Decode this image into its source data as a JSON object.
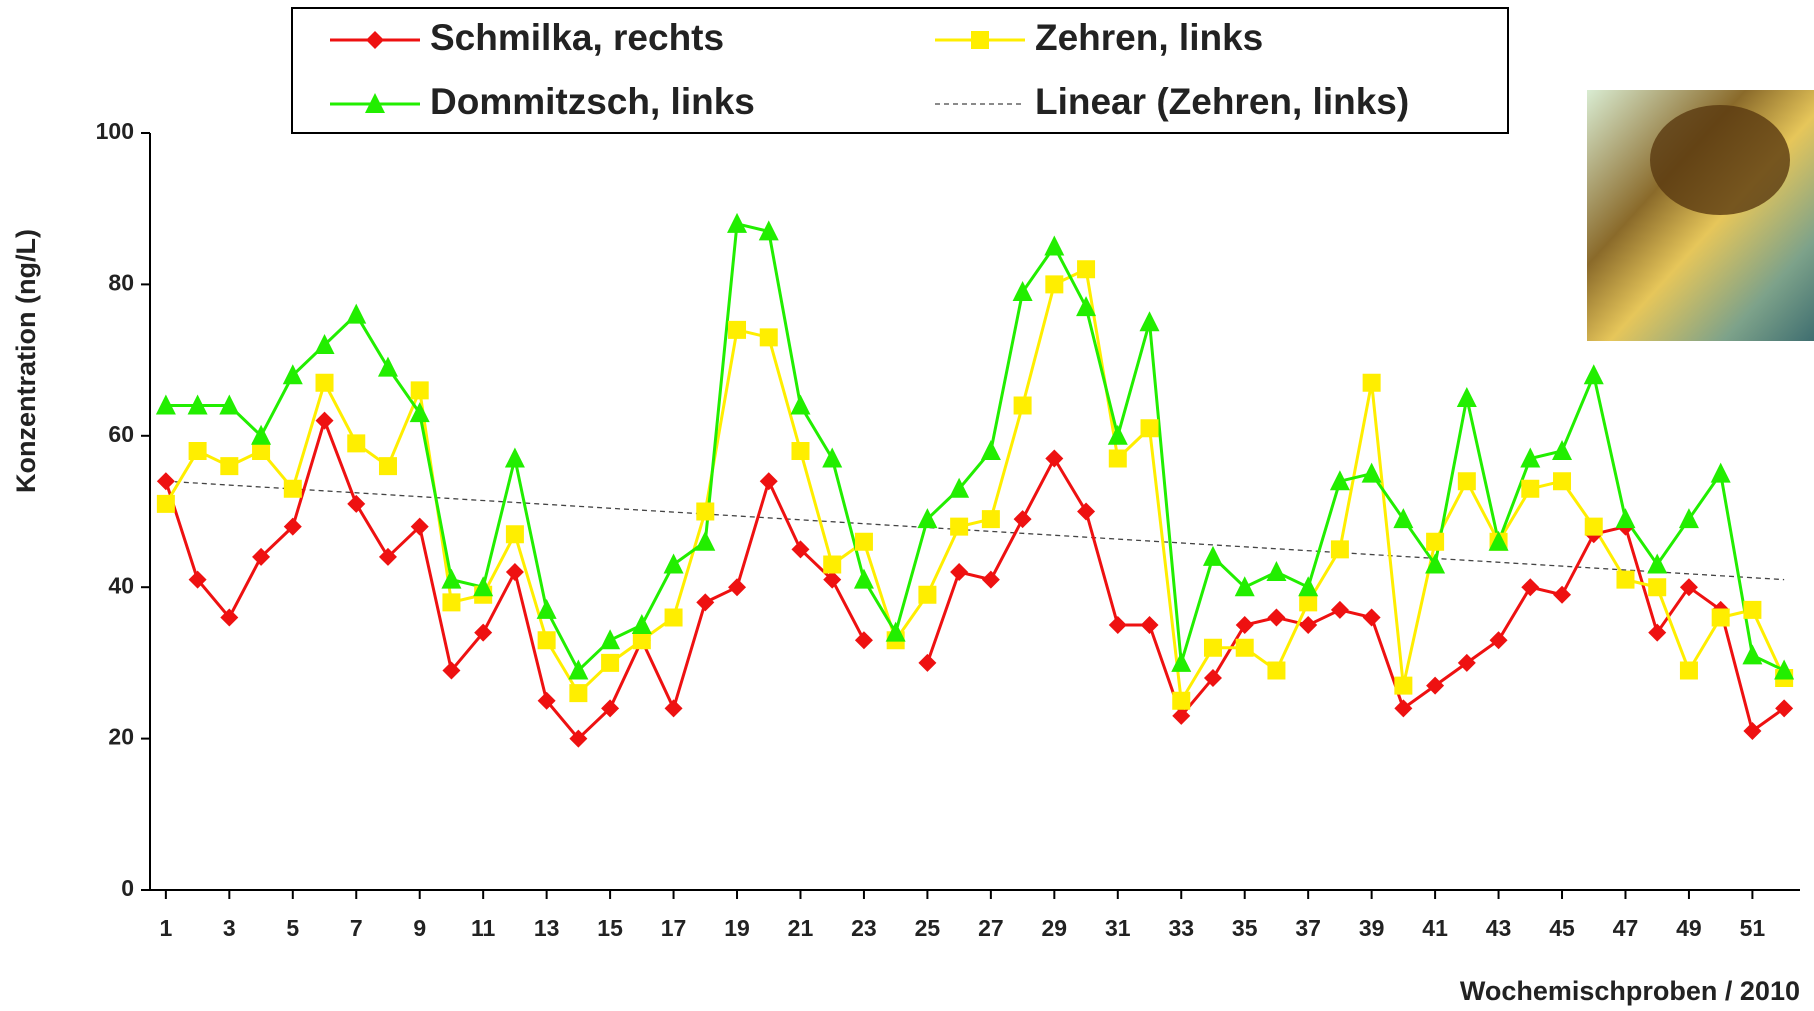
{
  "chart_data": {
    "type": "line",
    "y_label": "Konzentration (ng/L)",
    "x_label": "Wochemischproben / 2010",
    "x": [
      1,
      2,
      3,
      4,
      5,
      6,
      7,
      8,
      9,
      10,
      11,
      12,
      13,
      14,
      15,
      16,
      17,
      18,
      19,
      20,
      21,
      22,
      23,
      24,
      25,
      26,
      27,
      28,
      29,
      30,
      31,
      32,
      33,
      34,
      35,
      36,
      37,
      38,
      39,
      40,
      41,
      42,
      43,
      44,
      45,
      46,
      47,
      48,
      49,
      50,
      51,
      52
    ],
    "xlim": [
      0.5,
      52.5
    ],
    "xticks": [
      1,
      3,
      5,
      7,
      9,
      11,
      13,
      15,
      17,
      19,
      21,
      23,
      25,
      27,
      29,
      31,
      33,
      35,
      37,
      39,
      41,
      43,
      45,
      47,
      49,
      51
    ],
    "ylim": [
      0,
      100
    ],
    "yticks": [
      0,
      20,
      40,
      60,
      80,
      100
    ],
    "series": [
      {
        "name": "Schmilka, rechts",
        "color": "#ee1111",
        "marker": "diamond",
        "values": [
          54,
          41,
          36,
          44,
          48,
          62,
          51,
          44,
          48,
          29,
          34,
          42,
          25,
          20,
          24,
          33,
          24,
          38,
          40,
          54,
          45,
          41,
          33,
          null,
          30,
          42,
          41,
          49,
          57,
          50,
          35,
          35,
          23,
          28,
          35,
          36,
          35,
          37,
          36,
          24,
          27,
          30,
          33,
          40,
          39,
          47,
          48,
          34,
          40,
          37,
          21,
          24
        ]
      },
      {
        "name": "Zehren, links",
        "color": "#ffee00",
        "marker": "square",
        "values": [
          51,
          58,
          56,
          58,
          53,
          67,
          59,
          56,
          66,
          38,
          39,
          47,
          33,
          26,
          30,
          33,
          36,
          50,
          74,
          73,
          58,
          43,
          46,
          33,
          39,
          48,
          49,
          64,
          80,
          82,
          57,
          61,
          25,
          32,
          32,
          29,
          38,
          45,
          67,
          27,
          46,
          54,
          46,
          53,
          54,
          48,
          41,
          40,
          29,
          36,
          37,
          28
        ]
      },
      {
        "name": "Dommitzsch, links",
        "color": "#22ee00",
        "marker": "triangle",
        "values": [
          64,
          64,
          64,
          60,
          68,
          72,
          76,
          69,
          63,
          41,
          40,
          57,
          37,
          29,
          33,
          35,
          43,
          46,
          88,
          87,
          64,
          57,
          41,
          34,
          49,
          53,
          58,
          79,
          85,
          77,
          60,
          75,
          30,
          44,
          40,
          42,
          40,
          54,
          55,
          49,
          43,
          65,
          46,
          57,
          58,
          68,
          49,
          43,
          49,
          55,
          31,
          29
        ]
      }
    ],
    "trendline": {
      "name": "Linear (Zehren, links)",
      "color": "#444444",
      "x": [
        1,
        52
      ],
      "values": [
        54,
        41
      ]
    }
  }
}
